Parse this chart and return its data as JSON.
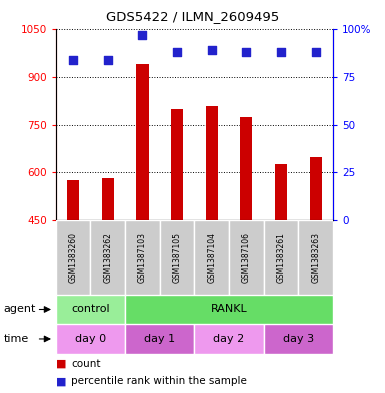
{
  "title": "GDS5422 / ILMN_2609495",
  "samples": [
    "GSM1383260",
    "GSM1383262",
    "GSM1387103",
    "GSM1387105",
    "GSM1387104",
    "GSM1387106",
    "GSM1383261",
    "GSM1383263"
  ],
  "counts": [
    575,
    582,
    940,
    800,
    808,
    775,
    625,
    650
  ],
  "percentiles": [
    84,
    84,
    97,
    88,
    89,
    88,
    88,
    88
  ],
  "ymin": 450,
  "ymax": 1050,
  "yticks": [
    450,
    600,
    750,
    900,
    1050
  ],
  "ytick_labels": [
    "450",
    "600",
    "750",
    "900",
    "1050"
  ],
  "y2ticks": [
    0,
    25,
    50,
    75,
    100
  ],
  "y2tick_labels": [
    "0",
    "25",
    "50",
    "75",
    "100%"
  ],
  "bar_color": "#cc0000",
  "dot_color": "#2222cc",
  "agent_row": [
    {
      "label": "control",
      "start": 0,
      "end": 2,
      "color": "#99ee99"
    },
    {
      "label": "RANKL",
      "start": 2,
      "end": 8,
      "color": "#66dd66"
    }
  ],
  "time_row": [
    {
      "label": "day 0",
      "start": 0,
      "end": 2,
      "color": "#ee99ee"
    },
    {
      "label": "day 1",
      "start": 2,
      "end": 4,
      "color": "#cc66cc"
    },
    {
      "label": "day 2",
      "start": 4,
      "end": 6,
      "color": "#ee99ee"
    },
    {
      "label": "day 3",
      "start": 6,
      "end": 8,
      "color": "#cc66cc"
    }
  ],
  "legend_count_color": "#cc0000",
  "legend_dot_color": "#2222cc",
  "bar_width": 0.35,
  "dot_size": 30,
  "sample_box_color": "#cccccc",
  "chart_border_color": "#888888"
}
